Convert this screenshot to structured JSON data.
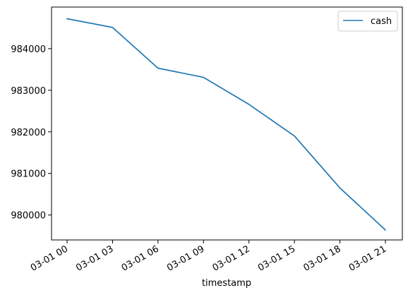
{
  "chart_data": {
    "type": "line",
    "title": "",
    "xlabel": "timestamp",
    "ylabel": "",
    "x": [
      "03-01 00",
      "03-01 03",
      "03-01 06",
      "03-01 09",
      "03-01 12",
      "03-01 15",
      "03-01 18",
      "03-01 21"
    ],
    "x_tick_labels": [
      "03-01 00",
      "03-01 03",
      "03-01 06",
      "03-01 09",
      "03-01 12",
      "03-01 15",
      "03-01 18",
      "03-01 21"
    ],
    "y_ticks": [
      980000,
      981000,
      982000,
      983000,
      984000
    ],
    "y_tick_labels": [
      "980000",
      "981000",
      "982000",
      "983000",
      "984000"
    ],
    "ylim": [
      979400,
      985000
    ],
    "grid": false,
    "legend": {
      "position": "top-right"
    },
    "series": [
      {
        "name": "cash",
        "color": "#1f77b4",
        "values": [
          984720,
          984510,
          983530,
          983310,
          982660,
          981900,
          980650,
          979640
        ]
      }
    ]
  }
}
